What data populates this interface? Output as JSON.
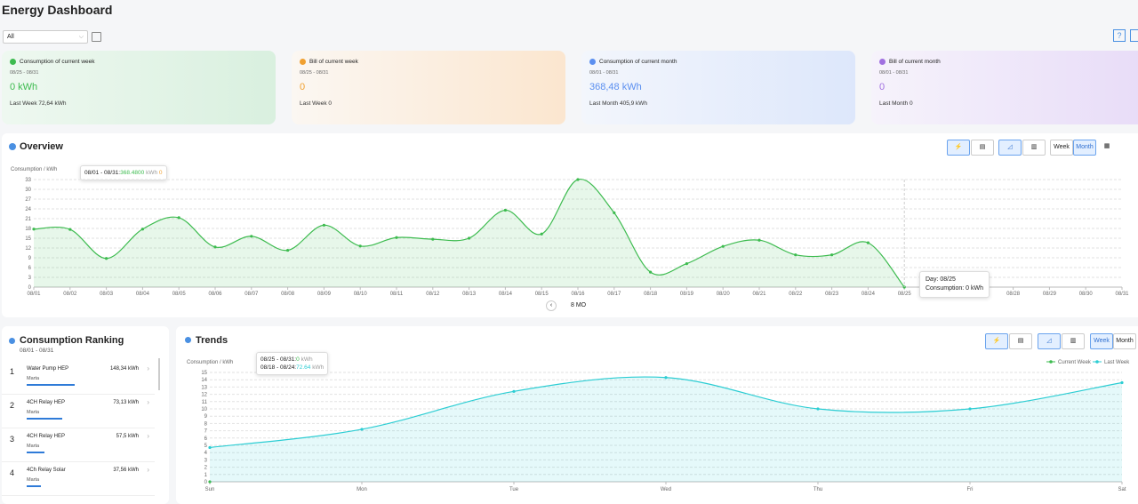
{
  "header": {
    "title": "Energy Dashboard",
    "filter": "All"
  },
  "cards": [
    {
      "title": "Consumption of current week",
      "range": "08/25 - 08/31",
      "value": "0 kWh",
      "last": "Last Week 72,64 kWh",
      "color": "#3dbb4f"
    },
    {
      "title": "Bill of current week",
      "range": "08/25 - 08/31",
      "value": "0",
      "last": "Last Week 0",
      "color": "#f0a030"
    },
    {
      "title": "Consumption of current month",
      "range": "08/01 - 08/31",
      "value": "368,48 kWh",
      "last": "Last Month 405,9 kWh",
      "color": "#5b8ff0"
    },
    {
      "title": "Bill of current month",
      "range": "08/01 - 08/31",
      "value": "0",
      "last": "Last Month 0",
      "color": "#a070e0"
    }
  ],
  "overview": {
    "title": "Overview",
    "buttons": [
      "Week",
      "Month"
    ],
    "tooltip": {
      "range": "08/01 - 08/31:",
      "value": "368.4800",
      "unit": "kWh",
      "bill": "0"
    },
    "hover": {
      "day": "Day:  08/25",
      "consumption": "Consumption:  0 kWh"
    },
    "pager": "8 MO"
  },
  "ranking": {
    "title": "Consumption Ranking",
    "range": "08/01 - 08/31",
    "items": [
      {
        "rank": 1,
        "name": "Water Pump HEP",
        "owner": "Marta",
        "value": "148,34 kWh"
      },
      {
        "rank": 2,
        "name": "4CH Relay HEP",
        "owner": "Marta",
        "value": "73,13 kWh"
      },
      {
        "rank": 3,
        "name": "4CH Relay HEP",
        "owner": "Marta",
        "value": "57,5 kWh"
      },
      {
        "rank": 4,
        "name": "4Ch Relay Solar",
        "owner": "Marta",
        "value": "37,56 kWh"
      }
    ]
  },
  "trends": {
    "title": "Trends",
    "buttons": [
      "Week",
      "Month"
    ],
    "tooltip": [
      {
        "range": "08/25 - 08/31:",
        "value": "0",
        "unit": "kWh"
      },
      {
        "range": "08/18 - 08/24:",
        "value": "72.64",
        "unit": "kWh"
      }
    ]
  },
  "chart_data": [
    {
      "type": "line",
      "y_label": "Consumption / kWh",
      "categories": [
        "08/01",
        "08/02",
        "08/03",
        "08/04",
        "08/05",
        "08/06",
        "08/07",
        "08/08",
        "08/09",
        "08/10",
        "08/11",
        "08/12",
        "08/13",
        "08/14",
        "08/15",
        "08/16",
        "08/17",
        "08/18",
        "08/19",
        "08/20",
        "08/21",
        "08/22",
        "08/23",
        "08/24",
        "08/25",
        "08/26",
        "08/27",
        "08/28",
        "08/29",
        "08/30",
        "08/31"
      ],
      "values": [
        17.8,
        17.7,
        8.8,
        17.8,
        21.3,
        12.3,
        15.6,
        11.3,
        19.0,
        12.6,
        15.2,
        14.7,
        15.0,
        23.6,
        16.3,
        33.0,
        22.8,
        4.6,
        7.2,
        12.5,
        14.4,
        9.9,
        9.9,
        13.6,
        0,
        null,
        null,
        null,
        null,
        null,
        null
      ],
      "color": "#3dbb4f",
      "ylim": [
        0,
        33
      ],
      "yticks": [
        0,
        3,
        6,
        9,
        12,
        15,
        18,
        21,
        24,
        27,
        30,
        33
      ],
      "grid": true
    },
    {
      "type": "line",
      "y_label": "Consumption / kWh",
      "categories": [
        "Sun",
        "Mon",
        "Tue",
        "Wed",
        "Thu",
        "Fri",
        "Sat"
      ],
      "series": [
        {
          "name": "Current Week",
          "color": "#3dbb4f",
          "values": [
            0,
            null,
            null,
            null,
            null,
            null,
            null
          ]
        },
        {
          "name": "Last Week",
          "color": "#2ccdd3",
          "values": [
            4.7,
            7.2,
            12.4,
            14.3,
            10.0,
            10.0,
            13.6
          ]
        }
      ],
      "ylim": [
        0,
        15
      ],
      "yticks": [
        0,
        1,
        2,
        3,
        4,
        5,
        6,
        7,
        8,
        9,
        10,
        11,
        12,
        13,
        14,
        15
      ],
      "grid": true,
      "legend": "top-right"
    }
  ]
}
